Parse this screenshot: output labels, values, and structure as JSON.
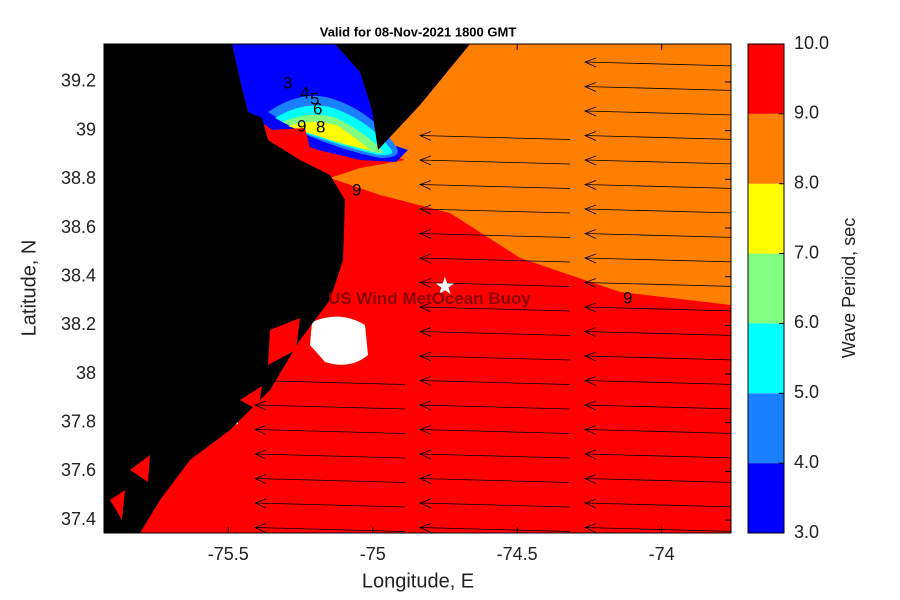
{
  "chart_data": {
    "type": "map",
    "title": "Valid for 08-Nov-2021 1800 GMT",
    "xlabel": "Longitude, E",
    "ylabel": "Latitude, N",
    "xlim": [
      -75.93,
      -73.76
    ],
    "ylim": [
      37.347,
      39.356
    ],
    "xticks": [
      -75.5,
      -75,
      -74.5,
      -74
    ],
    "yticks": [
      37.4,
      37.6,
      37.8,
      38,
      38.2,
      38.4,
      38.6,
      38.8,
      39,
      39.2
    ],
    "colorbar": {
      "label": "Wave Period, sec",
      "lim": [
        3,
        10
      ],
      "ticks": [
        {
          "value": 3,
          "label": "3.0"
        },
        {
          "value": 4,
          "label": "4.0"
        },
        {
          "value": 5,
          "label": "5.0"
        },
        {
          "value": 6,
          "label": "6.0"
        },
        {
          "value": 7,
          "label": "7.0"
        },
        {
          "value": 8,
          "label": "8.0"
        },
        {
          "value": 9,
          "label": "9.0"
        },
        {
          "value": 10,
          "label": "10.0"
        }
      ],
      "colors": [
        "#0000ff",
        "#1a80ff",
        "#00ffff",
        "#80ff80",
        "#ffff00",
        "#ff8000",
        "#ff0000"
      ]
    },
    "buoy": {
      "label": "US Wind MetOcean Buoy",
      "lon": -74.75,
      "lat": 38.36
    },
    "contour_labels": [
      "3",
      "4",
      "5",
      "6",
      "9",
      "8",
      "9",
      "9"
    ]
  }
}
